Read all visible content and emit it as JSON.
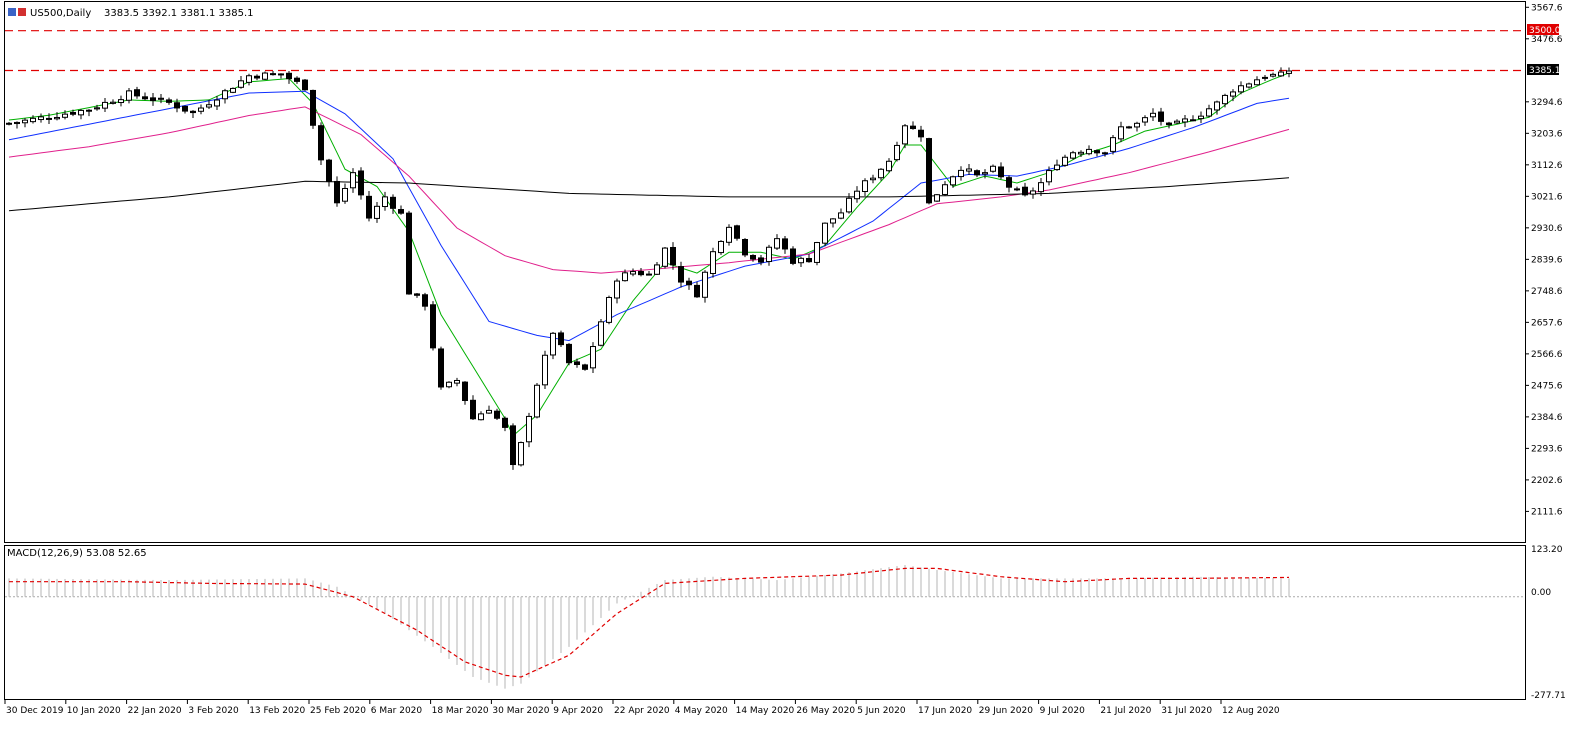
{
  "header": {
    "symbol": "US500,Daily",
    "ohlc": "3383.5 3392.1 3381.1 3385.1"
  },
  "price_labels": {
    "resistance_label": "3500.0",
    "current_label": "3385.1"
  },
  "macd": {
    "label": "MACD(12,26,9) 53.08 52.65",
    "ticks": [
      "123.20",
      "0.00",
      "-277.71"
    ]
  },
  "colors": {
    "bull_body": "#ffffff",
    "bear_body": "#000000",
    "ma_green": "#00b000",
    "ma_blue": "#1030ff",
    "ma_magenta": "#e0208c",
    "ma_black": "#000000",
    "hline": "#e00000",
    "macd_hist": "#c0c0c0",
    "macd_signal": "#e00000"
  },
  "chart_data": {
    "type": "candlestick",
    "y_ticks": [
      "3567.6",
      "3476.6",
      "3294.6",
      "3203.6",
      "3112.6",
      "3021.6",
      "2930.6",
      "2839.6",
      "2748.6",
      "2657.6",
      "2566.6",
      "2475.6",
      "2384.6",
      "2293.6",
      "2202.6",
      "2111.6"
    ],
    "ylim": [
      2029,
      3580
    ],
    "x_labels": [
      "30 Dec 2019",
      "10 Jan 2020",
      "22 Jan 2020",
      "3 Feb 2020",
      "13 Feb 2020",
      "25 Feb 2020",
      "6 Mar 2020",
      "18 Mar 2020",
      "30 Mar 2020",
      "9 Apr 2020",
      "22 Apr 2020",
      "4 May 2020",
      "14 May 2020",
      "26 May 2020",
      "5 Jun 2020",
      "17 Jun 2020",
      "29 Jun 2020",
      "9 Jul 2020",
      "21 Jul 2020",
      "31 Jul 2020",
      "12 Aug 2020"
    ],
    "horizontal_lines": [
      3500.0,
      3385.1
    ],
    "anchors": [
      [
        0,
        3232
      ],
      [
        5,
        3252
      ],
      [
        10,
        3273
      ],
      [
        15,
        3318
      ],
      [
        20,
        3292
      ],
      [
        23,
        3262
      ],
      [
        30,
        3370
      ],
      [
        34,
        3375
      ],
      [
        37,
        3337
      ],
      [
        39,
        3128
      ],
      [
        41,
        3000
      ],
      [
        43,
        3090
      ],
      [
        45,
        2960
      ],
      [
        47,
        3020
      ],
      [
        49,
        2970
      ],
      [
        50,
        2745
      ],
      [
        52,
        2710
      ],
      [
        54,
        2465
      ],
      [
        56,
        2490
      ],
      [
        58,
        2380
      ],
      [
        60,
        2410
      ],
      [
        62,
        2350
      ],
      [
        63,
        2240
      ],
      [
        64,
        2305
      ],
      [
        66,
        2480
      ],
      [
        68,
        2630
      ],
      [
        70,
        2540
      ],
      [
        72,
        2520
      ],
      [
        74,
        2660
      ],
      [
        76,
        2785
      ],
      [
        78,
        2805
      ],
      [
        80,
        2795
      ],
      [
        82,
        2870
      ],
      [
        84,
        2780
      ],
      [
        86,
        2740
      ],
      [
        88,
        2860
      ],
      [
        90,
        2940
      ],
      [
        92,
        2860
      ],
      [
        94,
        2835
      ],
      [
        96,
        2900
      ],
      [
        98,
        2835
      ],
      [
        100,
        2840
      ],
      [
        102,
        2940
      ],
      [
        104,
        2975
      ],
      [
        106,
        3040
      ],
      [
        108,
        3080
      ],
      [
        110,
        3125
      ],
      [
        112,
        3230
      ],
      [
        114,
        3200
      ],
      [
        115,
        3000
      ],
      [
        117,
        3060
      ],
      [
        119,
        3105
      ],
      [
        121,
        3080
      ],
      [
        123,
        3100
      ],
      [
        125,
        3050
      ],
      [
        127,
        3020
      ],
      [
        129,
        3060
      ],
      [
        131,
        3120
      ],
      [
        133,
        3150
      ],
      [
        135,
        3160
      ],
      [
        137,
        3150
      ],
      [
        139,
        3220
      ],
      [
        141,
        3230
      ],
      [
        143,
        3260
      ],
      [
        145,
        3220
      ],
      [
        147,
        3240
      ],
      [
        149,
        3260
      ],
      [
        151,
        3290
      ],
      [
        153,
        3330
      ],
      [
        155,
        3350
      ],
      [
        157,
        3370
      ],
      [
        159,
        3372
      ],
      [
        160,
        3385
      ]
    ],
    "moving_averages": [
      {
        "color": "green",
        "anchors": [
          [
            0,
            3242
          ],
          [
            5,
            3256
          ],
          [
            10,
            3278
          ],
          [
            15,
            3300
          ],
          [
            20,
            3296
          ],
          [
            25,
            3300
          ],
          [
            30,
            3352
          ],
          [
            35,
            3362
          ],
          [
            38,
            3290
          ],
          [
            42,
            3100
          ],
          [
            46,
            3050
          ],
          [
            50,
            2920
          ],
          [
            54,
            2680
          ],
          [
            58,
            2530
          ],
          [
            62,
            2380
          ],
          [
            63,
            2330
          ],
          [
            66,
            2390
          ],
          [
            70,
            2540
          ],
          [
            74,
            2580
          ],
          [
            78,
            2720
          ],
          [
            82,
            2830
          ],
          [
            86,
            2800
          ],
          [
            90,
            2860
          ],
          [
            94,
            2860
          ],
          [
            98,
            2840
          ],
          [
            102,
            2880
          ],
          [
            106,
            2990
          ],
          [
            110,
            3090
          ],
          [
            112,
            3170
          ],
          [
            114,
            3170
          ],
          [
            118,
            3050
          ],
          [
            122,
            3080
          ],
          [
            126,
            3060
          ],
          [
            130,
            3090
          ],
          [
            134,
            3140
          ],
          [
            138,
            3170
          ],
          [
            142,
            3210
          ],
          [
            146,
            3230
          ],
          [
            150,
            3250
          ],
          [
            154,
            3320
          ],
          [
            158,
            3360
          ],
          [
            160,
            3378
          ]
        ]
      },
      {
        "color": "blue",
        "anchors": [
          [
            0,
            3185
          ],
          [
            10,
            3230
          ],
          [
            20,
            3275
          ],
          [
            30,
            3320
          ],
          [
            37,
            3325
          ],
          [
            42,
            3260
          ],
          [
            48,
            3130
          ],
          [
            54,
            2880
          ],
          [
            60,
            2660
          ],
          [
            66,
            2620
          ],
          [
            70,
            2605
          ],
          [
            76,
            2680
          ],
          [
            84,
            2760
          ],
          [
            92,
            2820
          ],
          [
            100,
            2855
          ],
          [
            108,
            2950
          ],
          [
            114,
            3060
          ],
          [
            120,
            3085
          ],
          [
            126,
            3080
          ],
          [
            132,
            3110
          ],
          [
            140,
            3160
          ],
          [
            148,
            3220
          ],
          [
            156,
            3290
          ],
          [
            160,
            3305
          ]
        ]
      },
      {
        "color": "magenta",
        "anchors": [
          [
            0,
            3135
          ],
          [
            10,
            3165
          ],
          [
            20,
            3205
          ],
          [
            30,
            3255
          ],
          [
            37,
            3280
          ],
          [
            44,
            3200
          ],
          [
            50,
            3080
          ],
          [
            56,
            2930
          ],
          [
            62,
            2850
          ],
          [
            68,
            2810
          ],
          [
            74,
            2800
          ],
          [
            80,
            2810
          ],
          [
            90,
            2830
          ],
          [
            100,
            2855
          ],
          [
            110,
            2940
          ],
          [
            116,
            3000
          ],
          [
            124,
            3020
          ],
          [
            130,
            3040
          ],
          [
            140,
            3090
          ],
          [
            150,
            3150
          ],
          [
            160,
            3215
          ]
        ]
      },
      {
        "color": "black",
        "anchors": [
          [
            0,
            2980
          ],
          [
            20,
            3020
          ],
          [
            37,
            3065
          ],
          [
            50,
            3060
          ],
          [
            60,
            3045
          ],
          [
            70,
            3030
          ],
          [
            90,
            3020
          ],
          [
            110,
            3020
          ],
          [
            130,
            3030
          ],
          [
            145,
            3050
          ],
          [
            160,
            3075
          ]
        ]
      }
    ],
    "macd_histogram": {
      "anchors": [
        [
          0,
          55
        ],
        [
          20,
          50
        ],
        [
          37,
          55
        ],
        [
          41,
          30
        ],
        [
          47,
          -50
        ],
        [
          53,
          -150
        ],
        [
          58,
          -240
        ],
        [
          62,
          -275
        ],
        [
          64,
          -260
        ],
        [
          70,
          -150
        ],
        [
          76,
          -20
        ],
        [
          82,
          50
        ],
        [
          88,
          60
        ],
        [
          96,
          50
        ],
        [
          104,
          70
        ],
        [
          112,
          95
        ],
        [
          116,
          80
        ],
        [
          124,
          55
        ],
        [
          132,
          55
        ],
        [
          140,
          55
        ],
        [
          148,
          60
        ],
        [
          160,
          55
        ]
      ]
    },
    "macd_signal": {
      "anchors": [
        [
          0,
          45
        ],
        [
          15,
          45
        ],
        [
          25,
          40
        ],
        [
          37,
          38
        ],
        [
          43,
          0
        ],
        [
          51,
          -100
        ],
        [
          57,
          -195
        ],
        [
          62,
          -235
        ],
        [
          64,
          -240
        ],
        [
          70,
          -175
        ],
        [
          76,
          -50
        ],
        [
          82,
          40
        ],
        [
          92,
          55
        ],
        [
          104,
          65
        ],
        [
          112,
          85
        ],
        [
          116,
          85
        ],
        [
          124,
          60
        ],
        [
          132,
          45
        ],
        [
          140,
          55
        ],
        [
          148,
          55
        ],
        [
          160,
          58
        ]
      ]
    },
    "macd_ylim": [
      -300,
      140
    ]
  }
}
